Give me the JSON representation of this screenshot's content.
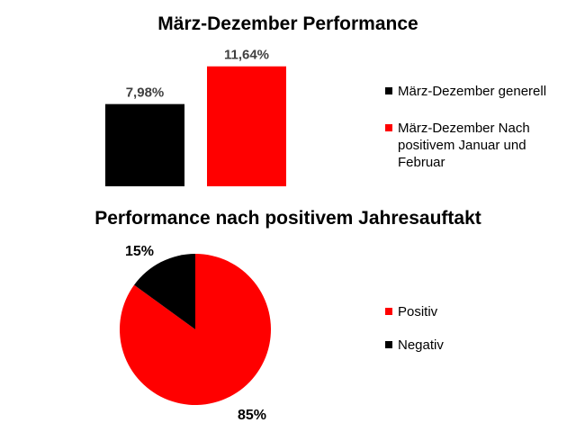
{
  "colors": {
    "black": "#000000",
    "red": "#ff0000",
    "value_label": "#404040"
  },
  "chart_data": [
    {
      "type": "bar",
      "title": "März-Dezember Performance",
      "xlabel": "",
      "ylabel": "",
      "ylim": [
        0,
        12.84
      ],
      "grid": false,
      "legend_position": "right",
      "categories": [
        "März-Dezember generell",
        "März-Dezember Nach positivem Januar und Februar"
      ],
      "values": [
        7.98,
        11.64
      ],
      "value_labels": [
        "7,98%",
        "11,64%"
      ],
      "bar_colors": [
        "#000000",
        "#ff0000"
      ],
      "legend": [
        {
          "label": "März-Dezember generell",
          "color": "#000000"
        },
        {
          "label": "März-Dezember Nach positivem Januar und Februar",
          "color": "#ff0000"
        }
      ]
    },
    {
      "type": "pie",
      "title": "Performance nach positivem Jahresauftakt",
      "legend_position": "right",
      "categories": [
        "Positiv",
        "Negativ"
      ],
      "values": [
        85,
        15
      ],
      "value_labels": [
        "85%",
        "15%"
      ],
      "slice_colors": [
        "#ff0000",
        "#000000"
      ],
      "legend": [
        {
          "label": "Positiv",
          "color": "#ff0000"
        },
        {
          "label": "Negativ",
          "color": "#000000"
        }
      ]
    }
  ]
}
